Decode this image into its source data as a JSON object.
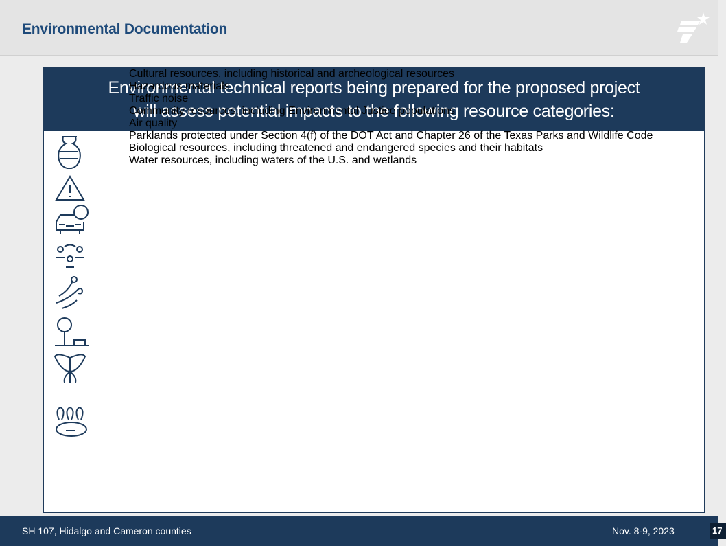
{
  "header": {
    "title": "Environmental Documentation"
  },
  "box": {
    "heading": [
      "Environmental technical reports being prepared for the proposed project",
      "will assess potential impacts to the following resource categories:"
    ],
    "items": [
      "Cultural resources, including historical and archeological resources",
      "Hazardous materials",
      "Traffic noise",
      "Community resources, including Environmental Justice populations",
      "Air quality",
      "Parklands protected under Section 4(f) of the DOT Act and Chapter 26 of the Texas Parks and Wildlife Code",
      "Biological resources, including threatened and endangered species and their habitats",
      "Water resources, including waters of the U.S. and wetlands"
    ]
  },
  "footer": {
    "left": "SH 107, Hidalgo and Cameron counties",
    "date": "Nov. 8-9, 2023",
    "page": "17"
  }
}
